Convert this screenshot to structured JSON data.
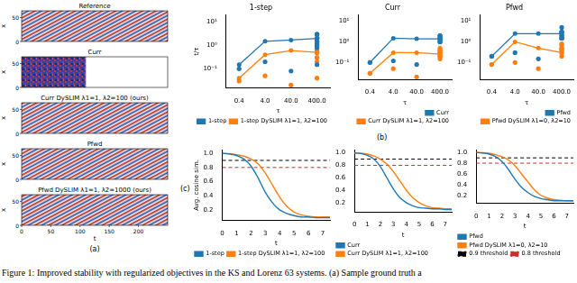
{
  "caption": "Figure 1: Improved stability with regularized objectives in the KS and Lorenz 63 systems. (a) Sample ground truth a",
  "panel_labels": [
    "(a)",
    "(b)",
    "(c)"
  ],
  "images": {
    "xlabel": "t",
    "ylabel": "x",
    "xlim": [
      0,
      250
    ],
    "ylim": [
      0,
      64
    ],
    "xticks": [
      0,
      50,
      100,
      150,
      200
    ],
    "yticks": [
      0,
      50
    ],
    "panels": [
      {
        "title": "Reference"
      },
      {
        "title": "Curr",
        "valid_until": 110
      },
      {
        "title": "Curr DySLIM λ1=1, λ2=100 (ours)"
      },
      {
        "title": "Pfwd"
      },
      {
        "title": "Pfwd DySLIM λ1=1, λ2=1000 (ours)"
      }
    ]
  },
  "chart_data": [
    {
      "type": "scatter",
      "title": "1-step",
      "xlabel": "τ",
      "ylabel": "t/τ",
      "categories": [
        "0.4",
        "4.0",
        "40.0",
        "400.0"
      ],
      "log": "y",
      "ylim": [
        0.015,
        20
      ],
      "yticks": [
        {
          "value": 0.1,
          "label": "10⁻¹"
        },
        {
          "value": 1,
          "label": "10⁰"
        },
        {
          "value": 10,
          "label": "10¹"
        }
      ],
      "grid": false,
      "legend": "lower right",
      "series": [
        {
          "name": "1-step",
          "color": "#1f77b4",
          "values": [
            0.15,
            1.5,
            1.7,
            2
          ],
          "points": [
            [
              0.1,
              0.2,
              0.08,
              0.15
            ],
            [
              1.5,
              3,
              0.8,
              2,
              1.2
            ],
            [
              1,
              2,
              3,
              1.5,
              1.3
            ],
            [
              3,
              2,
              1,
              1.5
            ]
          ]
        },
        {
          "name": "1-step DySLIM λ1=1, λ2=100",
          "color": "#ff7f0e",
          "values": [
            0.04,
            0.4,
            0.6,
            0.5
          ],
          "points": [
            [
              0.03,
              0.05,
              0.02,
              0.04
            ],
            [
              0.3,
              0.5,
              0.2
            ],
            [
              0.6,
              0.8,
              0.5
            ],
            [
              0.5,
              0.3,
              0.8
            ]
          ]
        }
      ]
    },
    {
      "type": "scatter",
      "title": "Curr",
      "xlabel": "τ",
      "categories": [
        "0.4",
        "4.0",
        "40.0",
        "400.0"
      ],
      "log": "y",
      "ylim": [
        0.015,
        20
      ],
      "yticks": [
        {
          "value": 0.1,
          "label": "10⁻¹"
        },
        {
          "value": 1,
          "label": "10⁰"
        },
        {
          "value": 10,
          "label": "10¹"
        }
      ],
      "grid": false,
      "legend": "lower right",
      "series": [
        {
          "name": "Curr",
          "color": "#1f77b4",
          "values": [
            0.1,
            1.5,
            1.4,
            1.4
          ],
          "points": [
            [
              0.1,
              0.12,
              0.08
            ],
            [
              1.5,
              2,
              1
            ],
            [
              1.2,
              2,
              1.5
            ],
            [
              1.5,
              1
            ]
          ]
        },
        {
          "name": "Curr DySLIM λ1=1, λ2=100",
          "color": "#ff7f0e",
          "values": [
            0.03,
            0.3,
            0.3,
            0.25
          ],
          "points": [
            [
              0.03,
              0.05,
              0.02
            ],
            [
              0.3,
              0.2,
              0.4
            ],
            [
              0.2,
              0.3,
              0.4
            ],
            [
              0.3,
              0.15,
              0.5
            ]
          ]
        }
      ]
    },
    {
      "type": "scatter",
      "title": "Pfwd",
      "xlabel": "τ",
      "categories": [
        "0.4",
        "4.0",
        "40.0",
        "400.0"
      ],
      "log": "y",
      "ylim": [
        0.015,
        20
      ],
      "yticks": [
        {
          "value": 0.1,
          "label": "10⁻¹"
        },
        {
          "value": 1,
          "label": "10⁰"
        },
        {
          "value": 10,
          "label": "10¹"
        }
      ],
      "grid": false,
      "legend": "lower right",
      "series": [
        {
          "name": "Pfwd",
          "color": "#1f77b4",
          "values": [
            0.2,
            2.5,
            2.5,
            2.5
          ],
          "points": [
            [
              0.2,
              0.3,
              0.15
            ],
            [
              3,
              5,
              1.5
            ],
            [
              2,
              3,
              1.5
            ],
            [
              3,
              2
            ]
          ]
        },
        {
          "name": "Pfwd DySLIM λ1=0, λ2=10",
          "color": "#ff7f0e",
          "values": [
            0.08,
            1,
            0.5,
            0.3
          ],
          "points": [
            [
              0.08,
              0.1,
              0.05
            ],
            [
              0.8,
              1.5,
              0.5
            ],
            [
              0.5,
              0.7,
              0.4
            ],
            [
              0.3,
              0.2,
              0.4
            ]
          ]
        }
      ]
    },
    {
      "type": "line",
      "xlabel": "t",
      "ylabel": "Avg. cosine sim.",
      "x": [
        0,
        0.5,
        1,
        1.5,
        2,
        2.5,
        3,
        3.5,
        4,
        4.5,
        5,
        5.5,
        6,
        6.5,
        7,
        7.5
      ],
      "xlim": [
        0,
        7.5
      ],
      "xticks": [
        0,
        1,
        2,
        3,
        4,
        5,
        6,
        7
      ],
      "ylim": [
        0.05,
        1.05
      ],
      "yticks": [
        0.2,
        0.4,
        0.6,
        0.8,
        {
          "value": 1,
          "label": "1.0"
        }
      ],
      "grid": false,
      "legend": "lower left",
      "hlines": [
        {
          "value": 0.9,
          "color": "#000000",
          "line_style": "dashed"
        },
        {
          "value": 0.8,
          "color": "#d62728",
          "line_style": "dashed"
        }
      ],
      "series": [
        {
          "name": "1-step",
          "color": "#1f77b4",
          "values": [
            1,
            0.99,
            0.97,
            0.92,
            0.82,
            0.65,
            0.45,
            0.3,
            0.2,
            0.15,
            0.12,
            0.1,
            0.1,
            0.09,
            0.09,
            0.09
          ]
        },
        {
          "name": "1-step DySLIM λ1=1, λ2=100",
          "color": "#ff7f0e",
          "values": [
            1,
            0.995,
            0.98,
            0.96,
            0.92,
            0.85,
            0.72,
            0.55,
            0.38,
            0.25,
            0.17,
            0.13,
            0.11,
            0.1,
            0.1,
            0.1
          ]
        }
      ]
    },
    {
      "type": "line",
      "xlabel": "t",
      "x": [
        0,
        0.5,
        1,
        1.5,
        2,
        2.5,
        3,
        3.5,
        4,
        4.5,
        5,
        5.5,
        6,
        6.5,
        7,
        7.5
      ],
      "xlim": [
        0,
        7.5
      ],
      "xticks": [
        0,
        1,
        2,
        3,
        4,
        5,
        6,
        7
      ],
      "ylim": [
        0.05,
        1.05
      ],
      "yticks": [
        0.2,
        0.4,
        0.6,
        0.8,
        {
          "value": 1,
          "label": "1.0"
        }
      ],
      "grid": false,
      "legend": "lower left",
      "hlines": [
        {
          "value": 0.9,
          "color": "#000000",
          "line_style": "dashed"
        },
        {
          "value": 0.8,
          "color": "#d62728",
          "line_style": "dashed"
        }
      ],
      "series": [
        {
          "name": "Curr",
          "color": "#1f77b4",
          "values": [
            1,
            0.99,
            0.96,
            0.9,
            0.78,
            0.6,
            0.42,
            0.28,
            0.2,
            0.15,
            0.12,
            0.11,
            0.1,
            0.1,
            0.09,
            0.09
          ]
        },
        {
          "name": "Curr DySLIM λ1=1, λ2=100",
          "color": "#ff7f0e",
          "values": [
            1,
            0.995,
            0.98,
            0.95,
            0.9,
            0.82,
            0.7,
            0.55,
            0.4,
            0.28,
            0.2,
            0.15,
            0.12,
            0.11,
            0.1,
            0.1
          ]
        }
      ]
    },
    {
      "type": "line",
      "xlabel": "t",
      "x": [
        0,
        0.5,
        1,
        1.5,
        2,
        2.5,
        3,
        3.5,
        4,
        4.5,
        5,
        5.5,
        6,
        6.5,
        7,
        7.5
      ],
      "xlim": [
        0,
        7.5
      ],
      "xticks": [
        0,
        1,
        2,
        3,
        4,
        5,
        6,
        7
      ],
      "ylim": [
        0.05,
        1.05
      ],
      "yticks": [
        0.2,
        0.4,
        0.6,
        0.8,
        {
          "value": 1,
          "label": "1.0"
        }
      ],
      "grid": false,
      "legend": "lower left",
      "hlines": [
        {
          "name": "0.9 threshold",
          "value": 0.9,
          "color": "#000000",
          "line_style": "dashed"
        },
        {
          "name": "0.8 threshold",
          "value": 0.8,
          "color": "#d62728",
          "line_style": "dashed"
        }
      ],
      "series": [
        {
          "name": "Pfwd",
          "color": "#1f77b4",
          "values": [
            1,
            0.99,
            0.97,
            0.92,
            0.83,
            0.68,
            0.5,
            0.35,
            0.25,
            0.18,
            0.14,
            0.12,
            0.1,
            0.1,
            0.1,
            0.1
          ]
        },
        {
          "name": "Pfwd DySLIM λ1=0, λ2=10",
          "color": "#ff7f0e",
          "values": [
            1,
            0.995,
            0.985,
            0.96,
            0.92,
            0.86,
            0.75,
            0.6,
            0.45,
            0.3,
            0.2,
            0.15,
            0.12,
            0.11,
            0.1,
            0.1
          ]
        }
      ]
    }
  ]
}
